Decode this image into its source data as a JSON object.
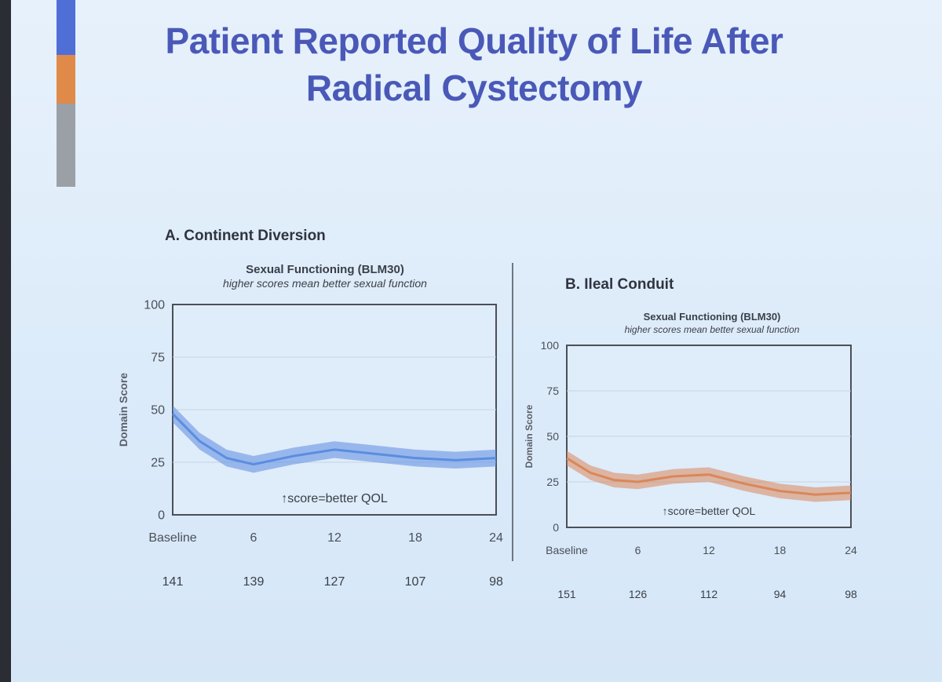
{
  "slide": {
    "title": "Patient Reported Quality of Life After Radical Cystectomy",
    "accent_colors": [
      "#4f6fd6",
      "#e08a4a",
      "#9aa0a6"
    ]
  },
  "chart_data": [
    {
      "type": "area",
      "panel_title": "A. Continent Diversion",
      "title": "Sexual Functioning (BLM30)",
      "subtitle": "higher scores mean better sexual function",
      "ylabel": "Domain Score",
      "xlabel": "",
      "ylim": [
        0,
        100
      ],
      "yticks": [
        "0",
        "25",
        "50",
        "75",
        "100"
      ],
      "xlim": [
        0,
        24
      ],
      "xticks": [
        0,
        6,
        12,
        18,
        24
      ],
      "xtick_labels": [
        "Baseline",
        "6",
        "12",
        "18",
        "24"
      ],
      "n_at_risk": [
        "141",
        "139",
        "127",
        "107",
        "98"
      ],
      "annotation": "↑score=better QOL",
      "grid": true,
      "color": "#5b8de0",
      "series": [
        {
          "x": [
            0,
            2,
            4,
            6,
            9,
            12,
            15,
            18,
            21,
            24
          ],
          "y": [
            48,
            35,
            27,
            24,
            28,
            31,
            29,
            27,
            26,
            27
          ],
          "band": 4
        }
      ]
    },
    {
      "type": "area",
      "panel_title": "B. Ileal Conduit",
      "title": "Sexual Functioning (BLM30)",
      "subtitle": "higher scores mean better sexual function",
      "ylabel": "Domain Score",
      "xlabel": "",
      "ylim": [
        0,
        100
      ],
      "yticks": [
        "0",
        "25",
        "50",
        "75",
        "100"
      ],
      "xlim": [
        0,
        24
      ],
      "xticks": [
        0,
        6,
        12,
        18,
        24
      ],
      "xtick_labels": [
        "Baseline",
        "6",
        "12",
        "18",
        "24"
      ],
      "n_at_risk": [
        "151",
        "126",
        "112",
        "94",
        "98"
      ],
      "annotation": "↑score=better QOL",
      "grid": true,
      "color": "#d9875a",
      "series": [
        {
          "x": [
            0,
            2,
            4,
            6,
            9,
            12,
            15,
            18,
            21,
            24
          ],
          "y": [
            38,
            30,
            26,
            25,
            28,
            29,
            24,
            20,
            18,
            19
          ],
          "band": 4
        }
      ]
    }
  ]
}
